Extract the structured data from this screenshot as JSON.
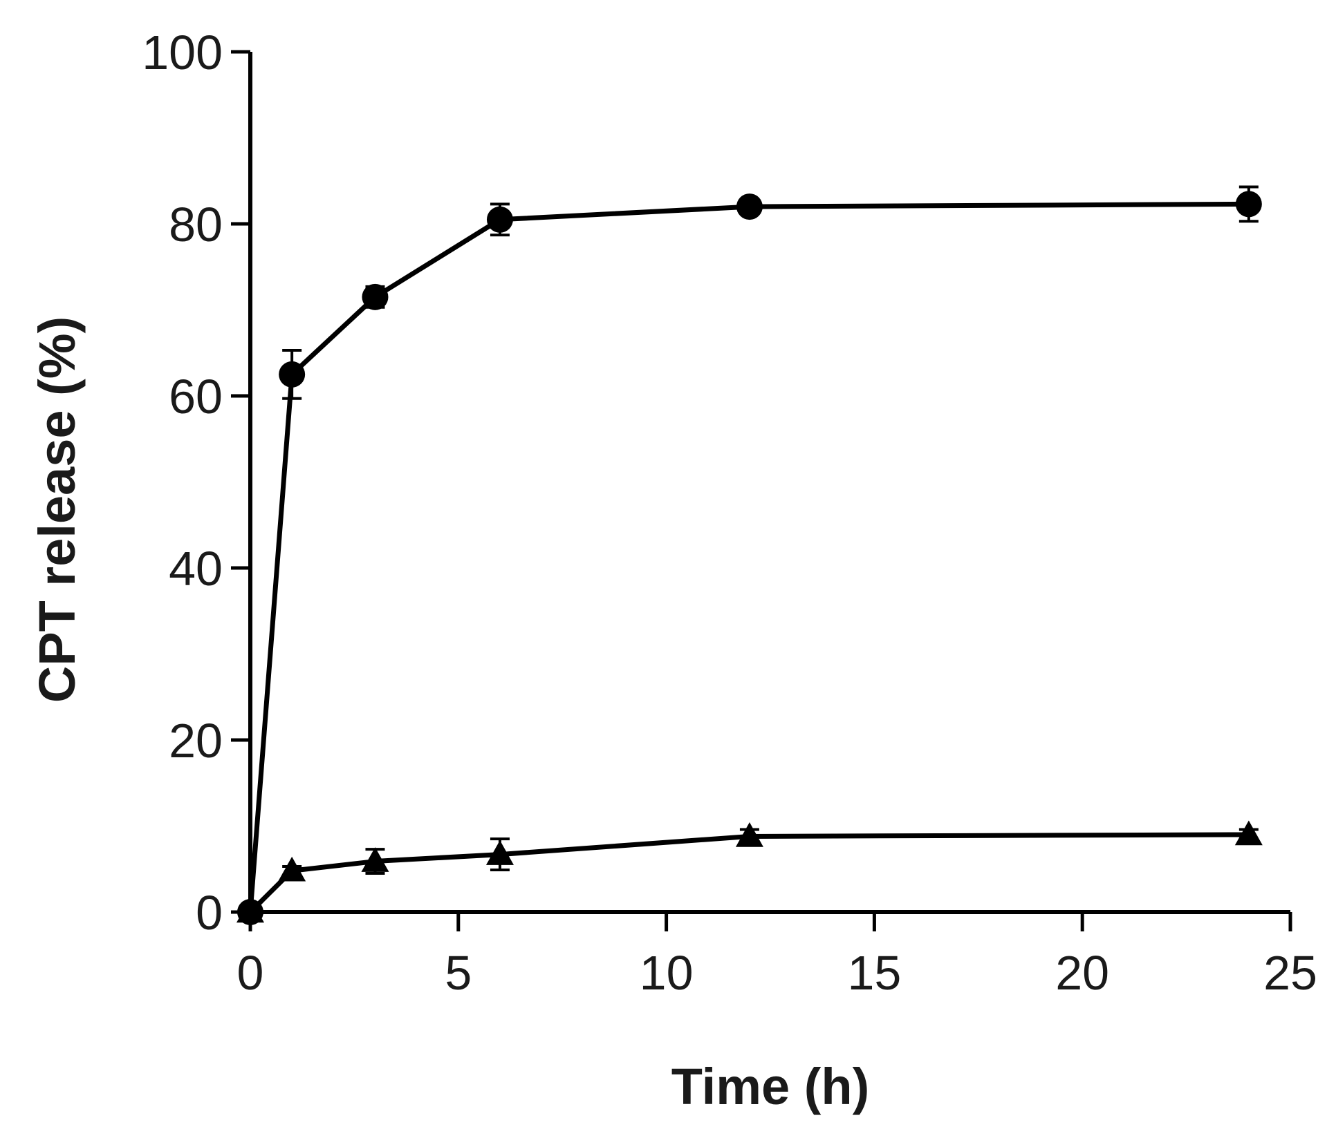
{
  "chart_data": {
    "type": "line",
    "title": "",
    "xlabel": "Time (h)",
    "ylabel": "CPT release (%)",
    "xlim": [
      0,
      25
    ],
    "ylim": [
      0,
      100
    ],
    "xticks": [
      0,
      5,
      10,
      15,
      20,
      25
    ],
    "yticks": [
      0,
      20,
      40,
      60,
      80,
      100
    ],
    "grid": false,
    "legend": "none",
    "series": [
      {
        "marker": "circle",
        "color": "#000000",
        "x": [
          0,
          1,
          3,
          6,
          12,
          24
        ],
        "y": [
          0,
          62.5,
          71.5,
          80.5,
          82,
          82.3
        ],
        "err": [
          0,
          2.8,
          1.2,
          1.8,
          0.8,
          2.0
        ]
      },
      {
        "marker": "triangle",
        "color": "#000000",
        "x": [
          0,
          1,
          3,
          6,
          12,
          24
        ],
        "y": [
          0,
          4.8,
          5.9,
          6.7,
          8.8,
          9.0
        ],
        "err": [
          0,
          0.5,
          1.4,
          1.8,
          0.8,
          0.6
        ]
      }
    ]
  }
}
